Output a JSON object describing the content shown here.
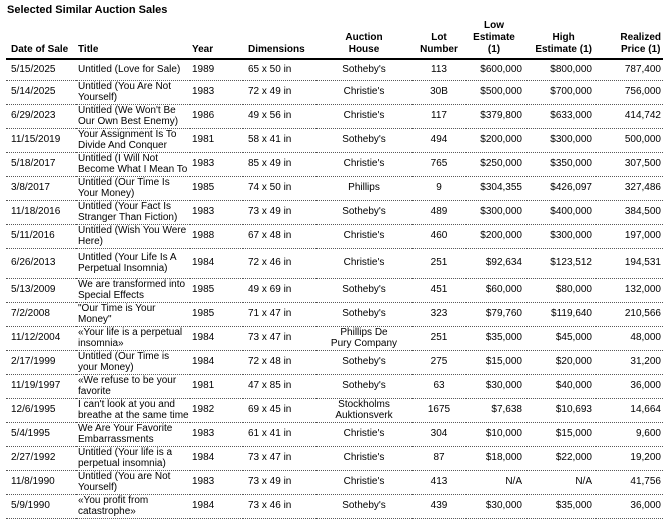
{
  "page": {
    "title": "Selected Similar Auction Sales"
  },
  "colors": {
    "text": "#000000",
    "background": "#ffffff",
    "header_rule": "#000000",
    "row_divider": "#595959"
  },
  "table": {
    "columns": [
      {
        "id": "date",
        "label": "Date of Sale",
        "align": "left"
      },
      {
        "id": "title",
        "label": "Title",
        "align": "left"
      },
      {
        "id": "year",
        "label": "Year",
        "align": "left"
      },
      {
        "id": "dimensions",
        "label": "Dimensions",
        "align": "left"
      },
      {
        "id": "house",
        "label": "Auction\nHouse",
        "align": "center"
      },
      {
        "id": "lot",
        "label": "Lot\nNumber",
        "align": "center"
      },
      {
        "id": "low",
        "label": "Low\nEstimate (1)",
        "align": "right"
      },
      {
        "id": "high",
        "label": "High\nEstimate (1)",
        "align": "right"
      },
      {
        "id": "realized",
        "label": "Realized\nPrice (1)",
        "align": "right"
      }
    ],
    "rows": [
      {
        "date": "5/15/2025",
        "title": "Untitled (Love for Sale)",
        "year": "1989",
        "dimensions": "65 x 50 in",
        "house": "Sotheby's",
        "lot": "113",
        "low": "$600,000",
        "high": "$800,000",
        "realized": "787,400"
      },
      {
        "date": "5/14/2025",
        "title": "Untitled (You Are Not Yourself)",
        "year": "1983",
        "dimensions": "72 x 49 in",
        "house": "Christie's",
        "lot": "30B",
        "low": "$500,000",
        "high": "$700,000",
        "realized": "756,000"
      },
      {
        "date": "6/29/2023",
        "title": "Untitled (We Won't Be Our Own Best Enemy)",
        "year": "1986",
        "dimensions": "49 x 56 in",
        "house": "Christie's",
        "lot": "117",
        "low": "$379,800",
        "high": "$633,000",
        "realized": "414,742"
      },
      {
        "date": "11/15/2019",
        "title": "Your Assignment Is To Divide And Conquer",
        "year": "1981",
        "dimensions": "58 x 41 in",
        "house": "Sotheby's",
        "lot": "494",
        "low": "$200,000",
        "high": "$300,000",
        "realized": "500,000"
      },
      {
        "date": "5/18/2017",
        "title": "Untitled (I Will Not Become What I Mean To",
        "year": "1983",
        "dimensions": "85 x 49 in",
        "house": "Christie's",
        "lot": "765",
        "low": "$250,000",
        "high": "$350,000",
        "realized": "307,500"
      },
      {
        "date": "3/8/2017",
        "title": "Untitled (Our Time Is Your Money)",
        "year": "1985",
        "dimensions": "74 x 50 in",
        "house": "Phillips",
        "lot": "9",
        "low": "$304,355",
        "high": "$426,097",
        "realized": "327,486"
      },
      {
        "date": "11/18/2016",
        "title": "Untitled (Your Fact Is Stranger Than Fiction)",
        "year": "1983",
        "dimensions": "73 x 49 in",
        "house": "Sotheby's",
        "lot": "489",
        "low": "$300,000",
        "high": "$400,000",
        "realized": "384,500"
      },
      {
        "date": "5/11/2016",
        "title": "Untitled (Wish You Were Here)",
        "year": "1988",
        "dimensions": "67 x 48 in",
        "house": "Christie's",
        "lot": "460",
        "low": "$200,000",
        "high": "$300,000",
        "realized": "197,000"
      },
      {
        "date": "6/26/2013",
        "title": "Untitled (Your Life Is A Perpetual Insomnia)",
        "year": "1984",
        "dimensions": "72 x 46 in",
        "house": "Christie's",
        "lot": "251",
        "low": "$92,634",
        "high": "$123,512",
        "realized": "194,531"
      },
      {
        "date": "5/13/2009",
        "title": "We are transformed into Special Effects",
        "year": "1985",
        "dimensions": "49 x 69 in",
        "house": "Sotheby's",
        "lot": "451",
        "low": "$60,000",
        "high": "$80,000",
        "realized": "132,000"
      },
      {
        "date": "7/2/2008",
        "title": "\"Our Time is Your Money\"",
        "year": "1985",
        "dimensions": "71 x 47 in",
        "house": "Sotheby's",
        "lot": "323",
        "low": "$79,760",
        "high": "$119,640",
        "realized": "210,566"
      },
      {
        "date": "11/12/2004",
        "title": "«Your life is a perpetual insomnia»",
        "year": "1984",
        "dimensions": "73 x 47 in",
        "house": "Phillips De\nPury Company",
        "lot": "251",
        "low": "$35,000",
        "high": "$45,000",
        "realized": "48,000"
      },
      {
        "date": "2/17/1999",
        "title": "Untitled (Our Time is your Money)",
        "year": "1984",
        "dimensions": "72 x 48 in",
        "house": "Sotheby's",
        "lot": "275",
        "low": "$15,000",
        "high": "$20,000",
        "realized": "31,200"
      },
      {
        "date": "11/19/1997",
        "title": "«We refuse to be your favorite",
        "year": "1981",
        "dimensions": "47 x 85 in",
        "house": "Sotheby's",
        "lot": "63",
        "low": "$30,000",
        "high": "$40,000",
        "realized": "36,000"
      },
      {
        "date": "12/6/1995",
        "title": "I can't look at you and breathe at the same time",
        "year": "1982",
        "dimensions": "69 x 45 in",
        "house": "Stockholms\nAuktionsverk",
        "lot": "1675",
        "low": "$7,638",
        "high": "$10,693",
        "realized": "14,664"
      },
      {
        "date": "5/4/1995",
        "title": "We Are Your Favorite Embarrassments",
        "year": "1983",
        "dimensions": "61 x 41 in",
        "house": "Christie's",
        "lot": "304",
        "low": "$10,000",
        "high": "$15,000",
        "realized": "9,600"
      },
      {
        "date": "2/27/1992",
        "title": "Untitled (Your life is a perpetual insomnia)",
        "year": "1984",
        "dimensions": "73 x 47 in",
        "house": "Christie's",
        "lot": "87",
        "low": "$18,000",
        "high": "$22,000",
        "realized": "19,200"
      },
      {
        "date": "11/8/1990",
        "title": "Untitled (You are Not Yourself)",
        "year": "1983",
        "dimensions": "73 x 49 in",
        "house": "Christie's",
        "lot": "413",
        "low": "N/A",
        "high": "N/A",
        "realized": "41,756"
      },
      {
        "date": "5/9/1990",
        "title": "«You profit from catastrophe»",
        "year": "1984",
        "dimensions": "73 x 46 in",
        "house": "Sotheby's",
        "lot": "439",
        "low": "$30,000",
        "high": "$35,000",
        "realized": "36,000"
      }
    ]
  }
}
